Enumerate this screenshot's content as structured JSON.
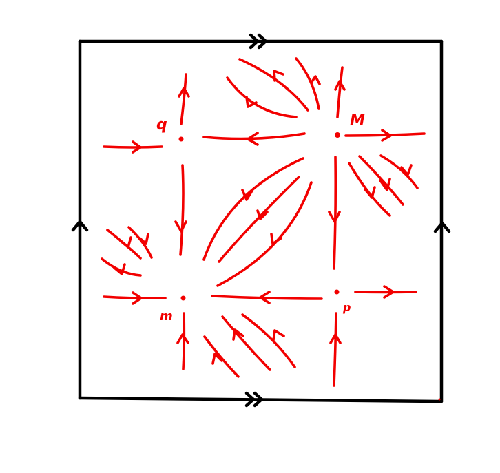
{
  "diagram": {
    "kind": "phase-portrait-on-torus",
    "colors": {
      "frame": "#000000",
      "flow": "#f20000",
      "background": "#ffffff"
    },
    "critical_points": [
      {
        "id": "q",
        "label": "q",
        "type": "saddle"
      },
      {
        "id": "M",
        "label": "M",
        "type": "source"
      },
      {
        "id": "m",
        "label": "m",
        "type": "sink"
      },
      {
        "id": "p",
        "label": "p",
        "type": "saddle"
      }
    ],
    "edge_identifications": {
      "top_bottom": "double-arrow",
      "left_right": "single-arrow"
    }
  }
}
